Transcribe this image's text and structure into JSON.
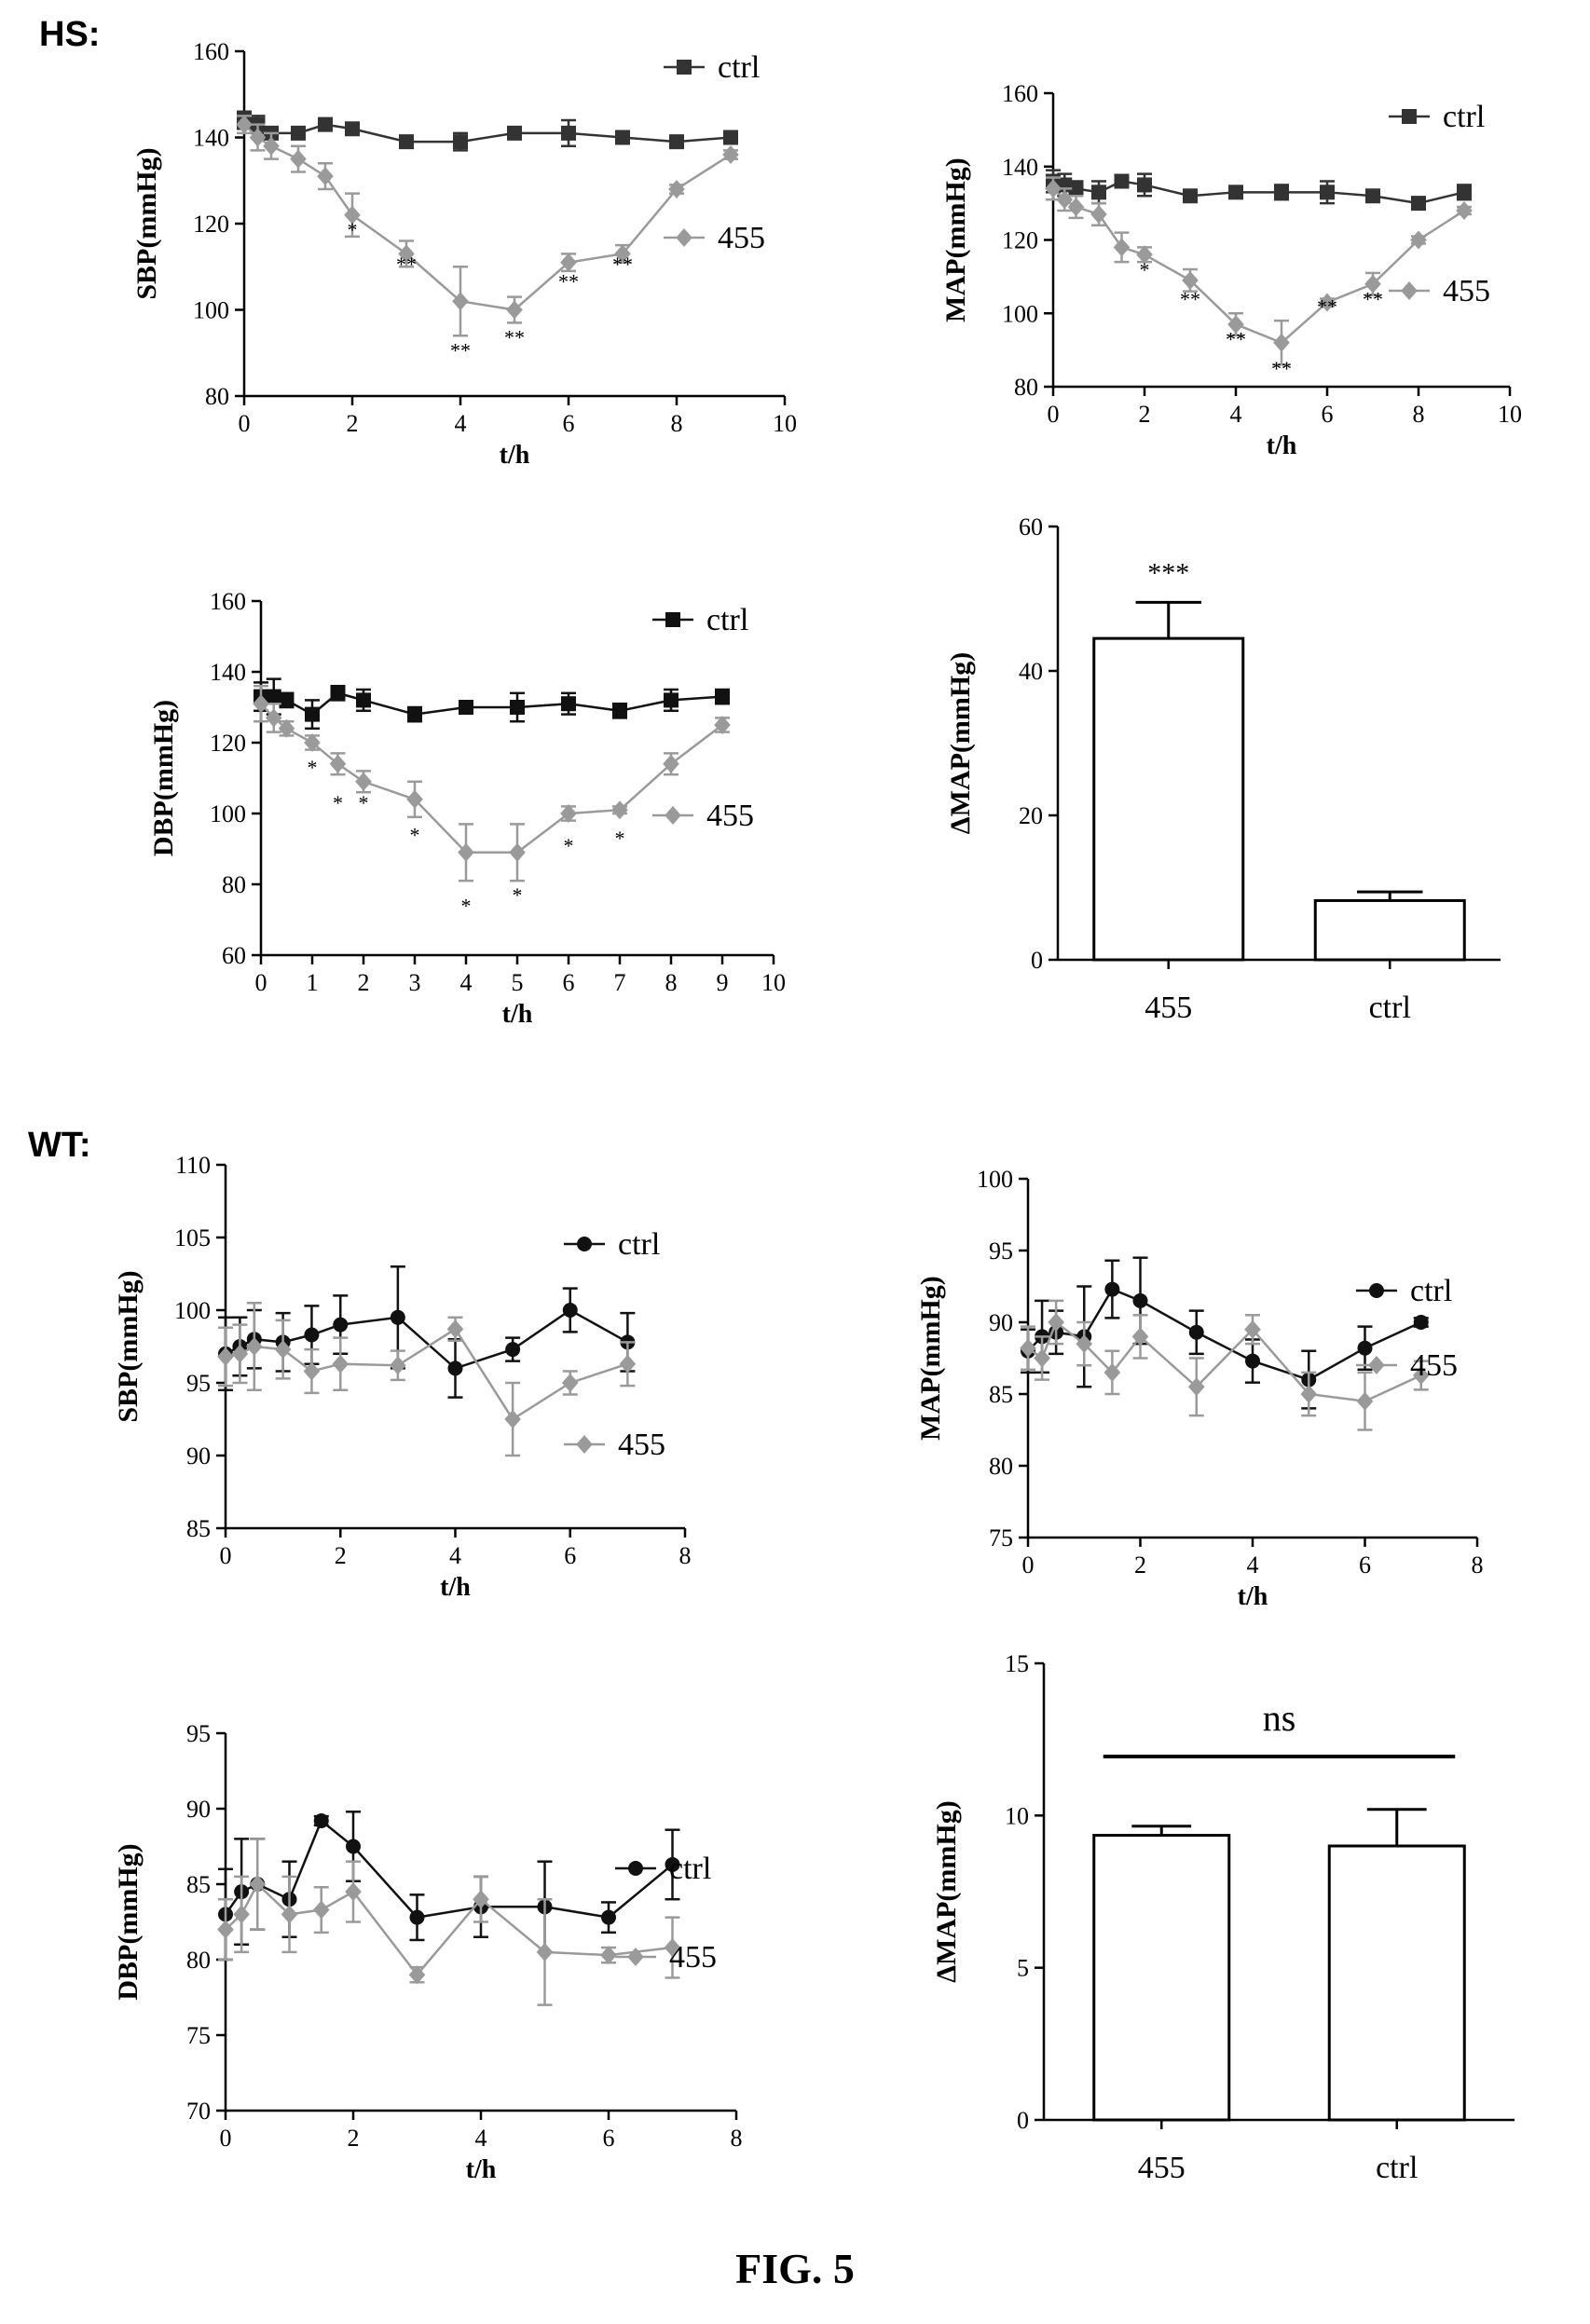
{
  "panel_labels": {
    "hs": "HS:",
    "wt": "WT:"
  },
  "figure_caption": "FIG. 5",
  "colors": {
    "ctrl": "#333333",
    "ctrl_dark": "#111111",
    "treated": "#9a9a9a",
    "axis": "#000000"
  },
  "chart_data": [
    {
      "id": "hs-sbp",
      "type": "line",
      "ylabel": "SBP(mmHg)",
      "xlabel": "t/h",
      "xlim": [
        0,
        10
      ],
      "ylim": [
        80,
        160
      ],
      "xticks": [
        0,
        2,
        4,
        6,
        8,
        10
      ],
      "yticks": [
        80,
        100,
        120,
        140,
        160
      ],
      "legend": "right",
      "series": [
        {
          "name": "ctrl",
          "marker": "square",
          "color": "ctrl",
          "x": [
            0,
            0.25,
            0.5,
            1,
            1.5,
            2,
            3,
            4,
            5,
            6,
            7,
            8,
            9
          ],
          "y": [
            144,
            143,
            141,
            141,
            143,
            142,
            139,
            139,
            141,
            141,
            140,
            139,
            140
          ],
          "err": [
            2,
            2,
            1,
            1,
            1,
            1,
            1,
            2,
            1,
            3,
            1,
            1,
            1
          ]
        },
        {
          "name": "455",
          "marker": "diamond",
          "color": "treated",
          "x": [
            0,
            0.25,
            0.5,
            1,
            1.5,
            2,
            3,
            4,
            5,
            6,
            7,
            8,
            9
          ],
          "y": [
            143,
            140,
            138,
            135,
            131,
            122,
            113,
            102,
            100,
            111,
            113,
            128,
            136
          ],
          "err": [
            2,
            3,
            3,
            3,
            3,
            5,
            3,
            8,
            3,
            2,
            2,
            1,
            1
          ]
        }
      ],
      "annotations": [
        {
          "x": 2,
          "y": 117,
          "text": "*"
        },
        {
          "x": 3,
          "y": 109,
          "text": "**"
        },
        {
          "x": 4,
          "y": 89,
          "text": "**"
        },
        {
          "x": 5,
          "y": 92,
          "text": "**"
        },
        {
          "x": 6,
          "y": 105,
          "text": "**"
        },
        {
          "x": 7,
          "y": 109,
          "text": "**"
        }
      ]
    },
    {
      "id": "hs-map",
      "type": "line",
      "ylabel": "MAP(mmHg)",
      "xlabel": "t/h",
      "xlim": [
        0,
        10
      ],
      "ylim": [
        80,
        160
      ],
      "xticks": [
        0,
        2,
        4,
        6,
        8,
        10
      ],
      "yticks": [
        80,
        100,
        120,
        140,
        160
      ],
      "legend": "right",
      "series": [
        {
          "name": "ctrl",
          "marker": "square",
          "color": "ctrl",
          "x": [
            0,
            0.25,
            0.5,
            1,
            1.5,
            2,
            3,
            4,
            5,
            6,
            7,
            8,
            9
          ],
          "y": [
            136,
            135,
            134,
            133,
            136,
            135,
            132,
            133,
            133,
            133,
            132,
            130,
            133
          ],
          "err": [
            3,
            3,
            2,
            3,
            1,
            3,
            1,
            1,
            2,
            3,
            1,
            1,
            2
          ]
        },
        {
          "name": "455",
          "marker": "diamond",
          "color": "treated",
          "x": [
            0,
            0.25,
            0.5,
            1,
            1.5,
            2,
            3,
            4,
            5,
            6,
            7,
            8,
            9
          ],
          "y": [
            134,
            131,
            129,
            127,
            118,
            116,
            109,
            97,
            92,
            103,
            108,
            120,
            128
          ],
          "err": [
            3,
            3,
            3,
            3,
            4,
            2,
            3,
            3,
            6,
            1,
            3,
            1,
            1
          ]
        }
      ],
      "annotations": [
        {
          "x": 2,
          "y": 110,
          "text": "*"
        },
        {
          "x": 3,
          "y": 102,
          "text": "**"
        },
        {
          "x": 4,
          "y": 91,
          "text": "**"
        },
        {
          "x": 5,
          "y": 83,
          "text": "**"
        },
        {
          "x": 6,
          "y": 100,
          "text": "**"
        },
        {
          "x": 7,
          "y": 102,
          "text": "**"
        }
      ]
    },
    {
      "id": "hs-dbp",
      "type": "line",
      "ylabel": "DBP(mmHg)",
      "xlabel": "t/h",
      "xlim": [
        0,
        10
      ],
      "ylim": [
        60,
        160
      ],
      "xticks": [
        0,
        1,
        2,
        3,
        4,
        5,
        6,
        7,
        8,
        9,
        10
      ],
      "yticks": [
        60,
        80,
        100,
        120,
        140,
        160
      ],
      "legend": "right",
      "series": [
        {
          "name": "ctrl",
          "marker": "square",
          "color": "ctrl_dark",
          "x": [
            0,
            0.25,
            0.5,
            1,
            1.5,
            2,
            3,
            4,
            5,
            6,
            7,
            8,
            9
          ],
          "y": [
            133,
            133,
            132,
            128,
            134,
            132,
            128,
            130,
            130,
            131,
            129,
            132,
            133
          ],
          "err": [
            4,
            5,
            2,
            4,
            2,
            3,
            2,
            1,
            4,
            3,
            2,
            3,
            2
          ]
        },
        {
          "name": "455",
          "marker": "diamond",
          "color": "treated",
          "x": [
            0,
            0.25,
            0.5,
            1,
            1.5,
            2,
            3,
            4,
            5,
            6,
            7,
            8,
            9
          ],
          "y": [
            131,
            127,
            124,
            120,
            114,
            109,
            104,
            89,
            89,
            100,
            101,
            114,
            125
          ],
          "err": [
            5,
            4,
            2,
            2,
            3,
            3,
            5,
            8,
            8,
            2,
            1,
            3,
            2
          ]
        }
      ],
      "annotations": [
        {
          "x": 1,
          "y": 111,
          "text": "*"
        },
        {
          "x": 1.5,
          "y": 101,
          "text": "*"
        },
        {
          "x": 2,
          "y": 101,
          "text": "*"
        },
        {
          "x": 3,
          "y": 92,
          "text": "*"
        },
        {
          "x": 4,
          "y": 72,
          "text": "*"
        },
        {
          "x": 5,
          "y": 75,
          "text": "*"
        },
        {
          "x": 6,
          "y": 89,
          "text": "*"
        },
        {
          "x": 7,
          "y": 91,
          "text": "*"
        }
      ]
    },
    {
      "id": "hs-dmap",
      "type": "bar",
      "ylabel": "ΔMAP(mmHg)",
      "xlabel": "",
      "ylim": [
        0,
        60
      ],
      "yticks": [
        0,
        20,
        40,
        60
      ],
      "categories": [
        "455",
        "ctrl"
      ],
      "values": [
        44.5,
        8.2
      ],
      "err": [
        5,
        1.2
      ],
      "annotations": [
        {
          "category": "455",
          "text": "***"
        }
      ]
    },
    {
      "id": "wt-sbp",
      "type": "line",
      "ylabel": "SBP(mmHg)",
      "xlabel": "t/h",
      "xlim": [
        0,
        8
      ],
      "ylim": [
        85,
        110
      ],
      "xticks": [
        0,
        2,
        4,
        6,
        8
      ],
      "yticks": [
        85,
        90,
        95,
        100,
        105,
        110
      ],
      "legend": "right",
      "series": [
        {
          "name": "ctrl",
          "marker": "circle",
          "color": "ctrl_dark",
          "x": [
            0,
            0.25,
            0.5,
            1,
            1.5,
            2,
            3,
            4,
            5,
            6,
            7
          ],
          "y": [
            97,
            97.5,
            98,
            97.8,
            98.3,
            99,
            99.5,
            96,
            97.3,
            100,
            97.8
          ],
          "err": [
            2.5,
            2,
            2,
            2,
            2,
            2,
            3.5,
            2,
            0.8,
            1.5,
            2
          ]
        },
        {
          "name": "455",
          "marker": "diamond",
          "color": "treated",
          "x": [
            0,
            0.25,
            0.5,
            1,
            1.5,
            2,
            3,
            4,
            5,
            6,
            7
          ],
          "y": [
            96.8,
            97,
            97.5,
            97.3,
            95.8,
            96.3,
            96.2,
            98.7,
            92.5,
            95,
            96.3
          ],
          "err": [
            2,
            2,
            3,
            2,
            1.5,
            1.8,
            1,
            0.8,
            2.5,
            0.8,
            1.5
          ]
        }
      ],
      "annotations": []
    },
    {
      "id": "wt-map",
      "type": "line",
      "ylabel": "MAP(mmHg)",
      "xlabel": "t/h",
      "xlim": [
        0,
        8
      ],
      "ylim": [
        75,
        100
      ],
      "xticks": [
        0,
        2,
        4,
        6,
        8
      ],
      "yticks": [
        75,
        80,
        85,
        90,
        95,
        100
      ],
      "legend": "right",
      "series": [
        {
          "name": "ctrl",
          "marker": "circle",
          "color": "ctrl_dark",
          "x": [
            0,
            0.25,
            0.5,
            1,
            1.5,
            2,
            3,
            4,
            5,
            6,
            7
          ],
          "y": [
            88,
            89,
            89.3,
            89,
            92.3,
            91.5,
            89.3,
            87.3,
            86,
            88.2,
            90
          ],
          "err": [
            1.5,
            2.5,
            1.5,
            3.5,
            2,
            3,
            1.5,
            1.5,
            2,
            1.5,
            0.3
          ]
        },
        {
          "name": "455",
          "marker": "diamond",
          "color": "treated",
          "x": [
            0,
            0.25,
            0.5,
            1,
            1.5,
            2,
            3,
            4,
            5,
            6,
            7
          ],
          "y": [
            88.2,
            87.5,
            90,
            88.5,
            86.5,
            89,
            85.5,
            89.5,
            85,
            84.5,
            86.3
          ],
          "err": [
            1.5,
            1.5,
            1.5,
            1.5,
            1.5,
            1.5,
            2,
            1,
            1.5,
            2,
            1
          ]
        }
      ],
      "annotations": []
    },
    {
      "id": "wt-dbp",
      "type": "line",
      "ylabel": "DBP(mmHg)",
      "xlabel": "t/h",
      "xlim": [
        0,
        8
      ],
      "ylim": [
        70,
        95
      ],
      "xticks": [
        0,
        2,
        4,
        6,
        8
      ],
      "yticks": [
        70,
        75,
        80,
        85,
        90,
        95
      ],
      "legend": "right",
      "series": [
        {
          "name": "ctrl",
          "marker": "circle",
          "color": "ctrl_dark",
          "x": [
            0,
            0.25,
            0.5,
            1,
            1.5,
            2,
            3,
            4,
            5,
            6,
            7
          ],
          "y": [
            83,
            84.5,
            85,
            84,
            89.2,
            87.5,
            82.8,
            83.5,
            83.5,
            82.8,
            86.3
          ],
          "err": [
            3,
            3.5,
            3,
            2.5,
            0.3,
            2.3,
            1.5,
            2,
            3,
            1,
            2.3
          ]
        },
        {
          "name": "455",
          "marker": "diamond",
          "color": "treated",
          "x": [
            0,
            0.25,
            0.5,
            1,
            1.5,
            2,
            3,
            4,
            5,
            6,
            7
          ],
          "y": [
            82,
            83,
            85,
            83,
            83.3,
            84.5,
            79,
            84,
            80.5,
            80.3,
            80.8
          ],
          "err": [
            2,
            2.5,
            3,
            2.5,
            1.5,
            2,
            0.5,
            1.5,
            3.5,
            0.5,
            2
          ]
        }
      ],
      "annotations": []
    },
    {
      "id": "wt-dmap",
      "type": "bar",
      "ylabel": "ΔMAP(mmHg)",
      "xlabel": "",
      "ylim": [
        0,
        15
      ],
      "yticks": [
        0,
        5,
        10,
        15
      ],
      "categories": [
        "455",
        "ctrl"
      ],
      "values": [
        9.35,
        9.0
      ],
      "err": [
        0.3,
        1.2
      ],
      "annotations": [
        {
          "text": "ns",
          "bracket": true
        }
      ]
    }
  ]
}
